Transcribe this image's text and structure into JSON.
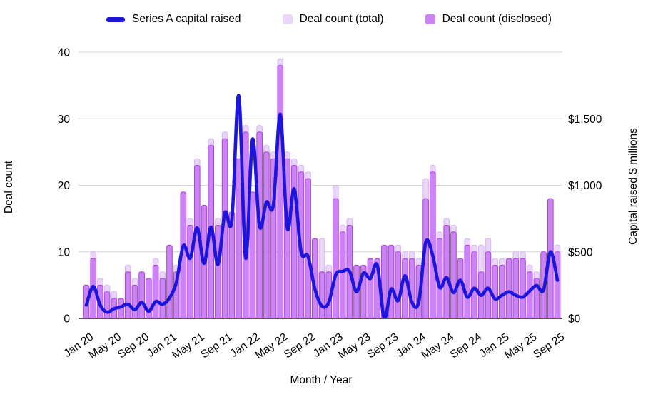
{
  "chart": {
    "legend": [
      {
        "label": "Series A capital raised",
        "type": "line",
        "color": "#1c16dd"
      },
      {
        "label": "Deal count (total)",
        "type": "square",
        "color": "#e9d6f8"
      },
      {
        "label": "Deal count (disclosed)",
        "type": "square",
        "color": "#cb84f2"
      }
    ],
    "y_left": {
      "title": "Deal count",
      "ticks": [
        0,
        10,
        20,
        30,
        40
      ],
      "max": 40
    },
    "y_right": {
      "title": "Capital raised $ millions",
      "ticks": [
        "$0",
        "$500",
        "$1,000",
        "$1,500"
      ],
      "tick_values": [
        0,
        500,
        1000,
        1500
      ],
      "max": 1500
    },
    "x_axis": {
      "title": "Month / Year"
    }
  },
  "chart_data": {
    "type": "bar",
    "subtype": "combo-bar-line",
    "title": "",
    "xlabel": "Month / Year",
    "ylabel_left": "Deal count",
    "ylabel_right": "Capital raised $ millions",
    "ylim_left": [
      0,
      40
    ],
    "ylim_right": [
      0,
      1500
    ],
    "grid": true,
    "legend_position": "top",
    "x_tick_every": 4,
    "categories": [
      "Jan 20",
      "Feb 20",
      "Mar 20",
      "Apr 20",
      "May 20",
      "Jun 20",
      "Jul 20",
      "Aug 20",
      "Sep 20",
      "Oct 20",
      "Nov 20",
      "Dec 20",
      "Jan 21",
      "Feb 21",
      "Mar 21",
      "Apr 21",
      "May 21",
      "Jun 21",
      "Jul 21",
      "Aug 21",
      "Sep 21",
      "Oct 21",
      "Nov 21",
      "Dec 21",
      "Jan 22",
      "Feb 22",
      "Mar 22",
      "Apr 22",
      "May 22",
      "Jun 22",
      "Jul 22",
      "Aug 22",
      "Sep 22",
      "Oct 22",
      "Nov 22",
      "Dec 22",
      "Jan 23",
      "Feb 23",
      "Mar 23",
      "Apr 23",
      "May 23",
      "Jun 23",
      "Jul 23",
      "Aug 23",
      "Sep 23",
      "Oct 23",
      "Nov 23",
      "Dec 23",
      "Jan 24",
      "Feb 24",
      "Mar 24",
      "Apr 24",
      "May 24",
      "Jun 24",
      "Jul 24",
      "Aug 24",
      "Sep 24",
      "Oct 24",
      "Nov 24",
      "Dec 24",
      "Jan 25",
      "Feb 25",
      "Mar 25",
      "Apr 25",
      "May 25",
      "Jun 25",
      "Jul 25",
      "Aug 25",
      "Sep 25"
    ],
    "series": [
      {
        "name": "Deal count (total)",
        "type": "bar",
        "axis": "left",
        "values": [
          5,
          10,
          6,
          5,
          4,
          3,
          8,
          6,
          7,
          6,
          9,
          7,
          11,
          8,
          19,
          15,
          24,
          17,
          27,
          15,
          28,
          16,
          24,
          29,
          19,
          29,
          26,
          25,
          39,
          25,
          24,
          23,
          22,
          12,
          12,
          8,
          20,
          14,
          15,
          8,
          8,
          9,
          9,
          11,
          11,
          11,
          10,
          10,
          9,
          21,
          23,
          13,
          15,
          14,
          9,
          12,
          11,
          11,
          12,
          9,
          9,
          9,
          10,
          10,
          8,
          7,
          10,
          18,
          11
        ]
      },
      {
        "name": "Deal count (disclosed)",
        "type": "bar",
        "axis": "left",
        "values": [
          5,
          9,
          5,
          4,
          3,
          3,
          7,
          5,
          7,
          6,
          8,
          6,
          11,
          7,
          19,
          14,
          23,
          17,
          26,
          14,
          27,
          16,
          24,
          28,
          19,
          28,
          25,
          24,
          38,
          24,
          23,
          22,
          21,
          12,
          7,
          7,
          18,
          13,
          14,
          8,
          8,
          9,
          9,
          11,
          11,
          10,
          9,
          9,
          8,
          18,
          22,
          12,
          14,
          13,
          9,
          11,
          10,
          7,
          10,
          8,
          8,
          9,
          9,
          9,
          7,
          6,
          10,
          18,
          10
        ]
      },
      {
        "name": "Series A capital raised",
        "type": "line",
        "axis": "right",
        "values": [
          75,
          180,
          75,
          35,
          55,
          65,
          80,
          50,
          90,
          40,
          95,
          80,
          115,
          205,
          410,
          340,
          510,
          310,
          515,
          305,
          595,
          550,
          1255,
          340,
          1010,
          520,
          655,
          640,
          1150,
          510,
          730,
          375,
          350,
          165,
          70,
          90,
          245,
          265,
          265,
          150,
          255,
          225,
          300,
          0,
          165,
          100,
          240,
          90,
          95,
          430,
          355,
          175,
          230,
          145,
          215,
          120,
          170,
          130,
          170,
          110,
          130,
          150,
          130,
          120,
          155,
          185,
          160,
          375,
          215
        ]
      }
    ],
    "colors": {
      "bar_total_fill": "#e9d6f8",
      "bar_total_stroke": "#d8b7f3",
      "bar_disclosed_fill": "#cb84f2",
      "bar_disclosed_stroke": "#a944e3",
      "line": "#1c16dd",
      "gridline": "#d6d6d6",
      "axis_line": "#212121",
      "text": "#000000",
      "background": "#ffffff"
    }
  }
}
